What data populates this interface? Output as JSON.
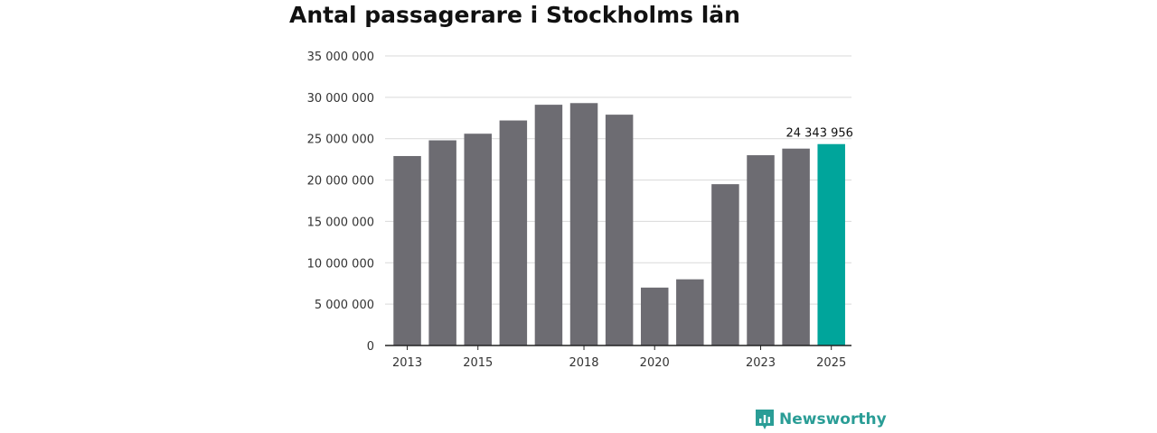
{
  "chart_data": {
    "type": "bar",
    "title": "Antal passagerare i Stockholms län",
    "xlabel": "",
    "ylabel": "",
    "categories": [
      "2013",
      "2014",
      "2015",
      "2016",
      "2017",
      "2018",
      "2019",
      "2020",
      "2021",
      "2022",
      "2023",
      "2024",
      "2025"
    ],
    "x_tick_labels": [
      "2013",
      "",
      "2015",
      "",
      "",
      "2018",
      "",
      "2020",
      "",
      "",
      "2023",
      "",
      "2025"
    ],
    "values": [
      22900000,
      24800000,
      25600000,
      27200000,
      29100000,
      29300000,
      27900000,
      7000000,
      8000000,
      19500000,
      23000000,
      23800000,
      24343956
    ],
    "ylim": [
      0,
      35000000
    ],
    "y_ticks": [
      0,
      5000000,
      10000000,
      15000000,
      20000000,
      25000000,
      30000000,
      35000000
    ],
    "y_tick_labels": [
      "0",
      "5 000 000",
      "10 000 000",
      "15 000 000",
      "20 000 000",
      "25 000 000",
      "30 000 000",
      "35 000 000"
    ],
    "data_labels": [
      "",
      "",
      "",
      "",
      "",
      "",
      "",
      "",
      "",
      "",
      "",
      "",
      "24 343 956"
    ],
    "grid": true,
    "colors": {
      "default": "#6d6c72",
      "highlight": "#00a59b"
    },
    "highlight_index": 12
  },
  "brand": {
    "name": "Newsworthy",
    "icon": "newsworthy-logo-icon",
    "color": "#2a9d96"
  }
}
